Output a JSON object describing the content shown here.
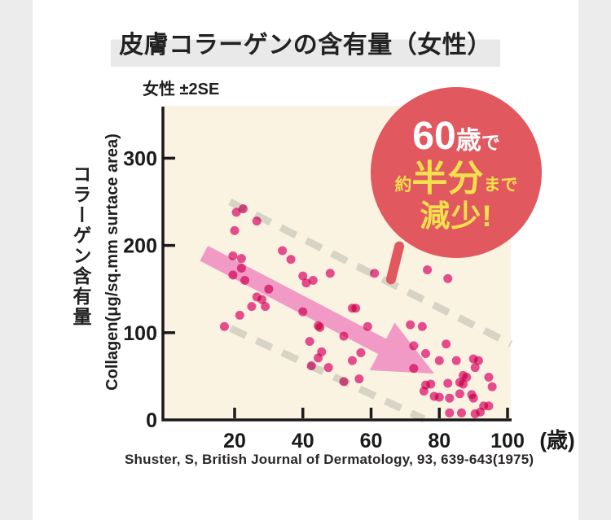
{
  "page": {
    "title": "皮膚コラーゲンの含有量（女性）",
    "subtitle": "女性 ±2SE",
    "source": "Shuster, S, British Journal of Dermatology, 93, 639-643(1975)"
  },
  "badge": {
    "line1_num": "60",
    "line1_sai": "歳",
    "line1_de": "で",
    "line2_yaku": "約",
    "line2_hanbun": "半分",
    "line2_made": "まで",
    "line3": "減少!",
    "bg_color": "#e2585f",
    "text_white": "#ffffff",
    "text_yellow": "#f3e04d"
  },
  "chart_data": {
    "type": "scatter",
    "title": "女性 ±2SE",
    "xlabel": "(歳)",
    "ylabel_ja": "コラーゲン含有量",
    "ylabel_en": "Collagen(μg/sq.mm surtace area)",
    "x_unit": "(歳)",
    "xlim": [
      0,
      101
    ],
    "ylim": [
      0,
      360
    ],
    "x_ticks": [
      20,
      40,
      60,
      80,
      100
    ],
    "y_ticks": [
      0,
      100,
      200,
      300
    ],
    "grid": false,
    "legend": "none",
    "points": [
      [
        20.5,
        238
      ],
      [
        22.5,
        242
      ],
      [
        26.5,
        228
      ],
      [
        20,
        217
      ],
      [
        19.5,
        188
      ],
      [
        22,
        185
      ],
      [
        22,
        174
      ],
      [
        19.5,
        166
      ],
      [
        23,
        160
      ],
      [
        17,
        107
      ],
      [
        34,
        194
      ],
      [
        36.5,
        184
      ],
      [
        30,
        150
      ],
      [
        26.5,
        141
      ],
      [
        28,
        138
      ],
      [
        25,
        130
      ],
      [
        29,
        130
      ],
      [
        21.5,
        120
      ],
      [
        40,
        165
      ],
      [
        41,
        157
      ],
      [
        43,
        160
      ],
      [
        48,
        168
      ],
      [
        40,
        124
      ],
      [
        44.5,
        108
      ],
      [
        42,
        90
      ],
      [
        45,
        106
      ],
      [
        45.5,
        78
      ],
      [
        44.5,
        71
      ],
      [
        42.5,
        62
      ],
      [
        47.5,
        60
      ],
      [
        52,
        96
      ],
      [
        54.5,
        68
      ],
      [
        56.5,
        47
      ],
      [
        52,
        44
      ],
      [
        57,
        77
      ],
      [
        54.5,
        128
      ],
      [
        55.5,
        128
      ],
      [
        59,
        107
      ],
      [
        61,
        168
      ],
      [
        71.5,
        109
      ],
      [
        75,
        107
      ],
      [
        72.5,
        85
      ],
      [
        72.5,
        59
      ],
      [
        76,
        76
      ],
      [
        76.5,
        172
      ],
      [
        82.5,
        162
      ],
      [
        82,
        87
      ],
      [
        80,
        68
      ],
      [
        85,
        68
      ],
      [
        90,
        70
      ],
      [
        91.5,
        68
      ],
      [
        90.5,
        60
      ],
      [
        94.5,
        49
      ],
      [
        87,
        51
      ],
      [
        88,
        49
      ],
      [
        86,
        43
      ],
      [
        87,
        41
      ],
      [
        82.5,
        42
      ],
      [
        95.5,
        38
      ],
      [
        76,
        40
      ],
      [
        77.5,
        41
      ],
      [
        75.5,
        33
      ],
      [
        78.5,
        27
      ],
      [
        80,
        26
      ],
      [
        83,
        25
      ],
      [
        86,
        30
      ],
      [
        89.5,
        29
      ],
      [
        90,
        25
      ],
      [
        93,
        16
      ],
      [
        94.5,
        16
      ],
      [
        83,
        8
      ],
      [
        86.5,
        8
      ],
      [
        90.5,
        7
      ],
      [
        92,
        9
      ]
    ],
    "se_band_lines": [
      {
        "x1": 18.6,
        "y1": 250,
        "x2": 101,
        "y2": 87
      },
      {
        "x1": 18.8,
        "y1": 105,
        "x2": 75.5,
        "y2": 1
      }
    ],
    "trend_arrow": {
      "x1": 11,
      "y1": 191,
      "x2": 78.5,
      "y2": 53
    },
    "colors": {
      "plot_bg": "#fbf3e2",
      "axis": "#1a1a1a",
      "band": "#d8d4c5",
      "point": "#e8509d",
      "arrow": "#f19ac5"
    }
  }
}
